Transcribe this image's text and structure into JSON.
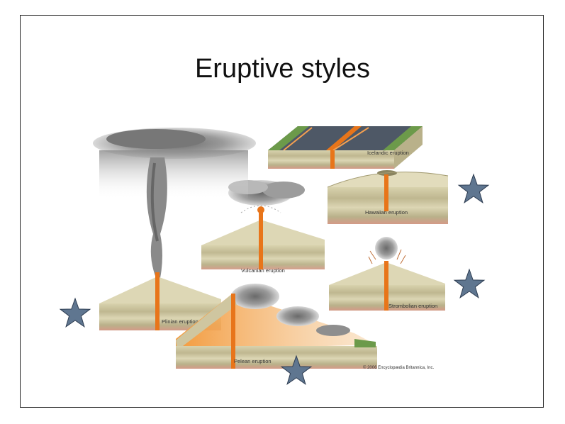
{
  "slide": {
    "title": "Eruptive styles"
  },
  "labels": {
    "icelandic": "Icelandic eruption",
    "hawaiian": "Hawaiian eruption",
    "vulcanian": "Vulcanian eruption",
    "strombolian": "Strombolian eruption",
    "plinian": "Plinian eruption",
    "pelean": "Pelean eruption",
    "credit": "© 2006 Encyclopædia Britannica, Inc."
  },
  "colors": {
    "star": "#5f7690",
    "lava": "#e8751a",
    "ground": "#cfc6a0",
    "rock_base": "#d49a88",
    "ash": "#7d7d7d"
  }
}
